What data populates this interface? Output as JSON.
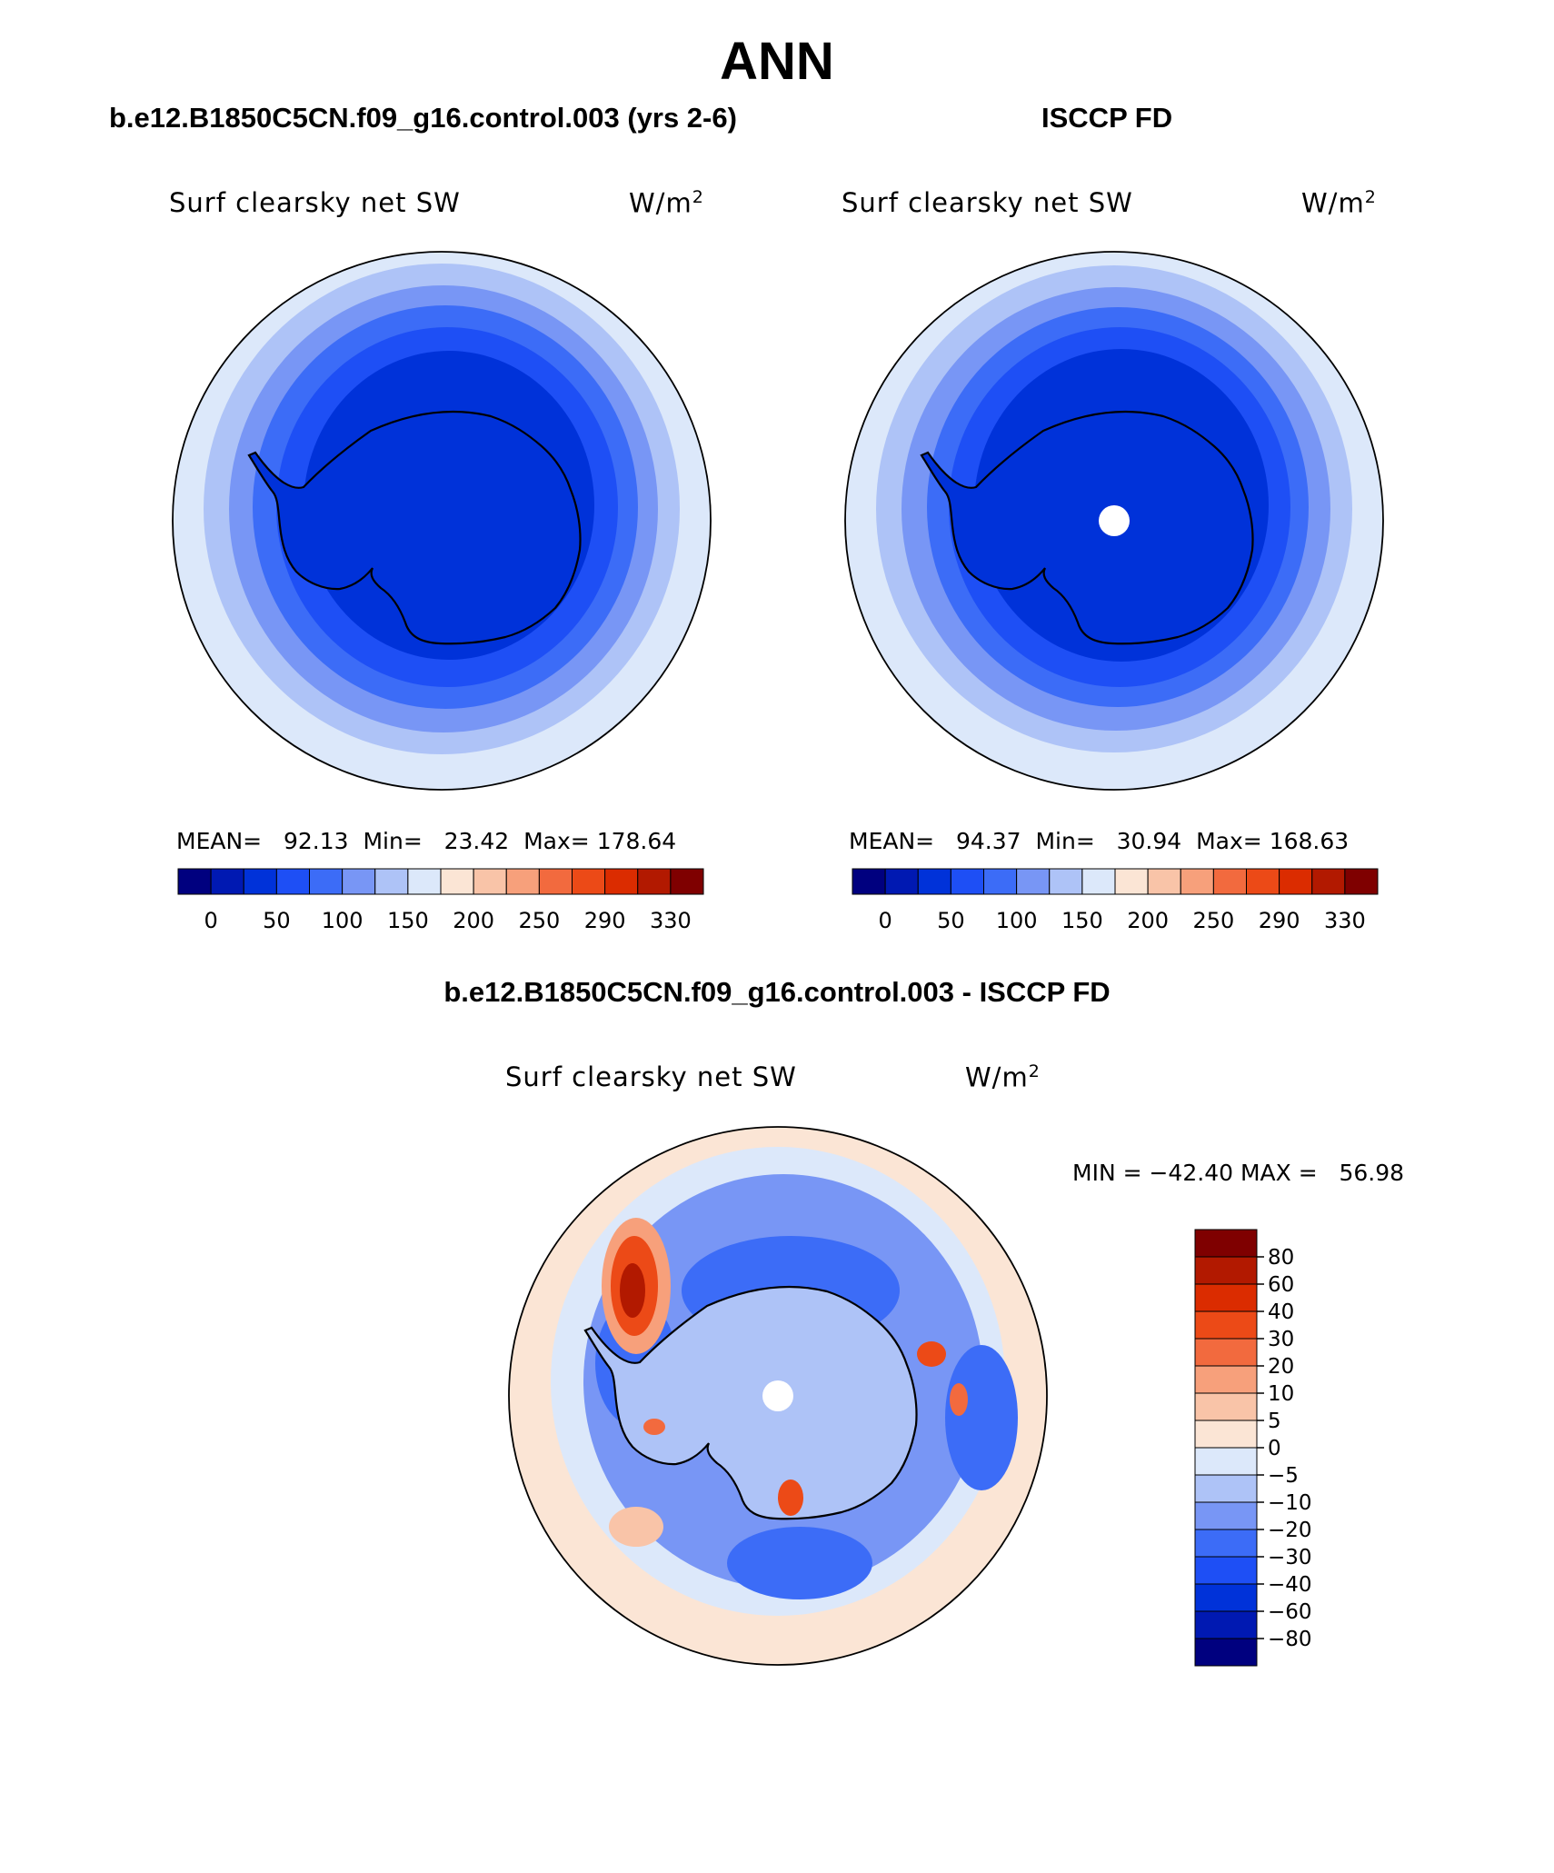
{
  "page": {
    "title": "ANN"
  },
  "panels": {
    "model": {
      "case_title": "b.e12.B1850C5CN.f09_g16.control.003 (yrs 2-6)",
      "variable": "Surf clearsky net SW",
      "units": "W/m",
      "units_exp": "2",
      "mean_label": "MEAN=",
      "mean": "92.13",
      "min_label": "Min=",
      "min": "23.42",
      "max_label": "Max=",
      "max": "178.64"
    },
    "obs": {
      "case_title": "ISCCP FD",
      "variable": "Surf clearsky net SW",
      "units": "W/m",
      "units_exp": "2",
      "mean_label": "MEAN=",
      "mean": "94.37",
      "min_label": "Min=",
      "min": "30.94",
      "max_label": "Max=",
      "max": "168.63"
    },
    "diff": {
      "case_title": "b.e12.B1850C5CN.f09_g16.control.003 - ISCCP FD",
      "variable": "Surf clearsky net SW",
      "units": "W/m",
      "units_exp": "2",
      "minmax": "MIN = −42.40 MAX =   56.98"
    }
  },
  "colorbars": {
    "absolute": {
      "colors": [
        "#00007f",
        "#0019b2",
        "#0032d9",
        "#1e4ff5",
        "#3c6cf7",
        "#7896f5",
        "#aec3f7",
        "#dce8fa",
        "#fbe5d5",
        "#f9c4a8",
        "#f7a07b",
        "#f26a3e",
        "#ec4a17",
        "#db2c00",
        "#b21900",
        "#7f0000"
      ],
      "labels": [
        "0",
        "50",
        "100",
        "150",
        "200",
        "250",
        "290",
        "330"
      ]
    },
    "difference": {
      "colors": [
        "#00007f",
        "#0019b2",
        "#0032d9",
        "#1e4ff5",
        "#3c6cf7",
        "#7896f5",
        "#aec3f7",
        "#dce8fa",
        "#fbe5d5",
        "#f9c4a8",
        "#f7a07b",
        "#f26a3e",
        "#ec4a17",
        "#db2c00",
        "#b21900",
        "#7f0000"
      ],
      "labels": [
        "80",
        "60",
        "40",
        "30",
        "20",
        "10",
        "5",
        "0",
        "−5",
        "−10",
        "−20",
        "−30",
        "−40",
        "−60",
        "−80"
      ]
    }
  }
}
